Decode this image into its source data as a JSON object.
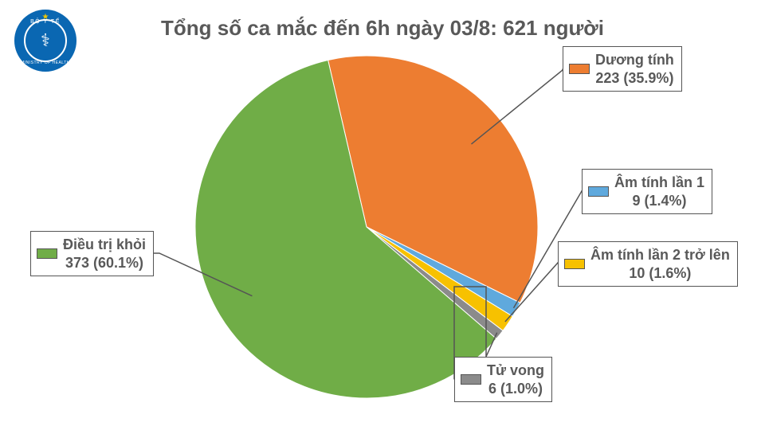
{
  "logo": {
    "top_text": "BỘ Y TẾ",
    "bottom_text": "MINISTRY OF HEALTH"
  },
  "chart": {
    "type": "pie",
    "title": "Tổng số ca mắc đến 6h ngày 03/8: 621 người",
    "title_color": "#595959",
    "title_fontsize": 26,
    "background_color": "#ffffff",
    "start_angle_deg": -13,
    "slices": [
      {
        "key": "positive",
        "label": "Dương tính",
        "value": 223,
        "percent": 35.9,
        "color": "#ed7d31"
      },
      {
        "key": "neg1",
        "label": "Âm tính lần 1",
        "value": 9,
        "percent": 1.4,
        "color": "#5fa9dd"
      },
      {
        "key": "neg2plus",
        "label": "Âm tính lần 2 trở lên",
        "value": 10,
        "percent": 1.6,
        "color": "#f7c100"
      },
      {
        "key": "death",
        "label": "Tử vong",
        "value": 6,
        "percent": 1.0,
        "color": "#8b8b8b"
      },
      {
        "key": "recovered",
        "label": "Điều trị khỏi",
        "value": 373,
        "percent": 60.1,
        "color": "#70ad47"
      }
    ],
    "label_fontsize": 18,
    "label_color": "#595959",
    "label_border_color": "#555555",
    "chip_size": {
      "w": 26,
      "h": 13
    }
  }
}
